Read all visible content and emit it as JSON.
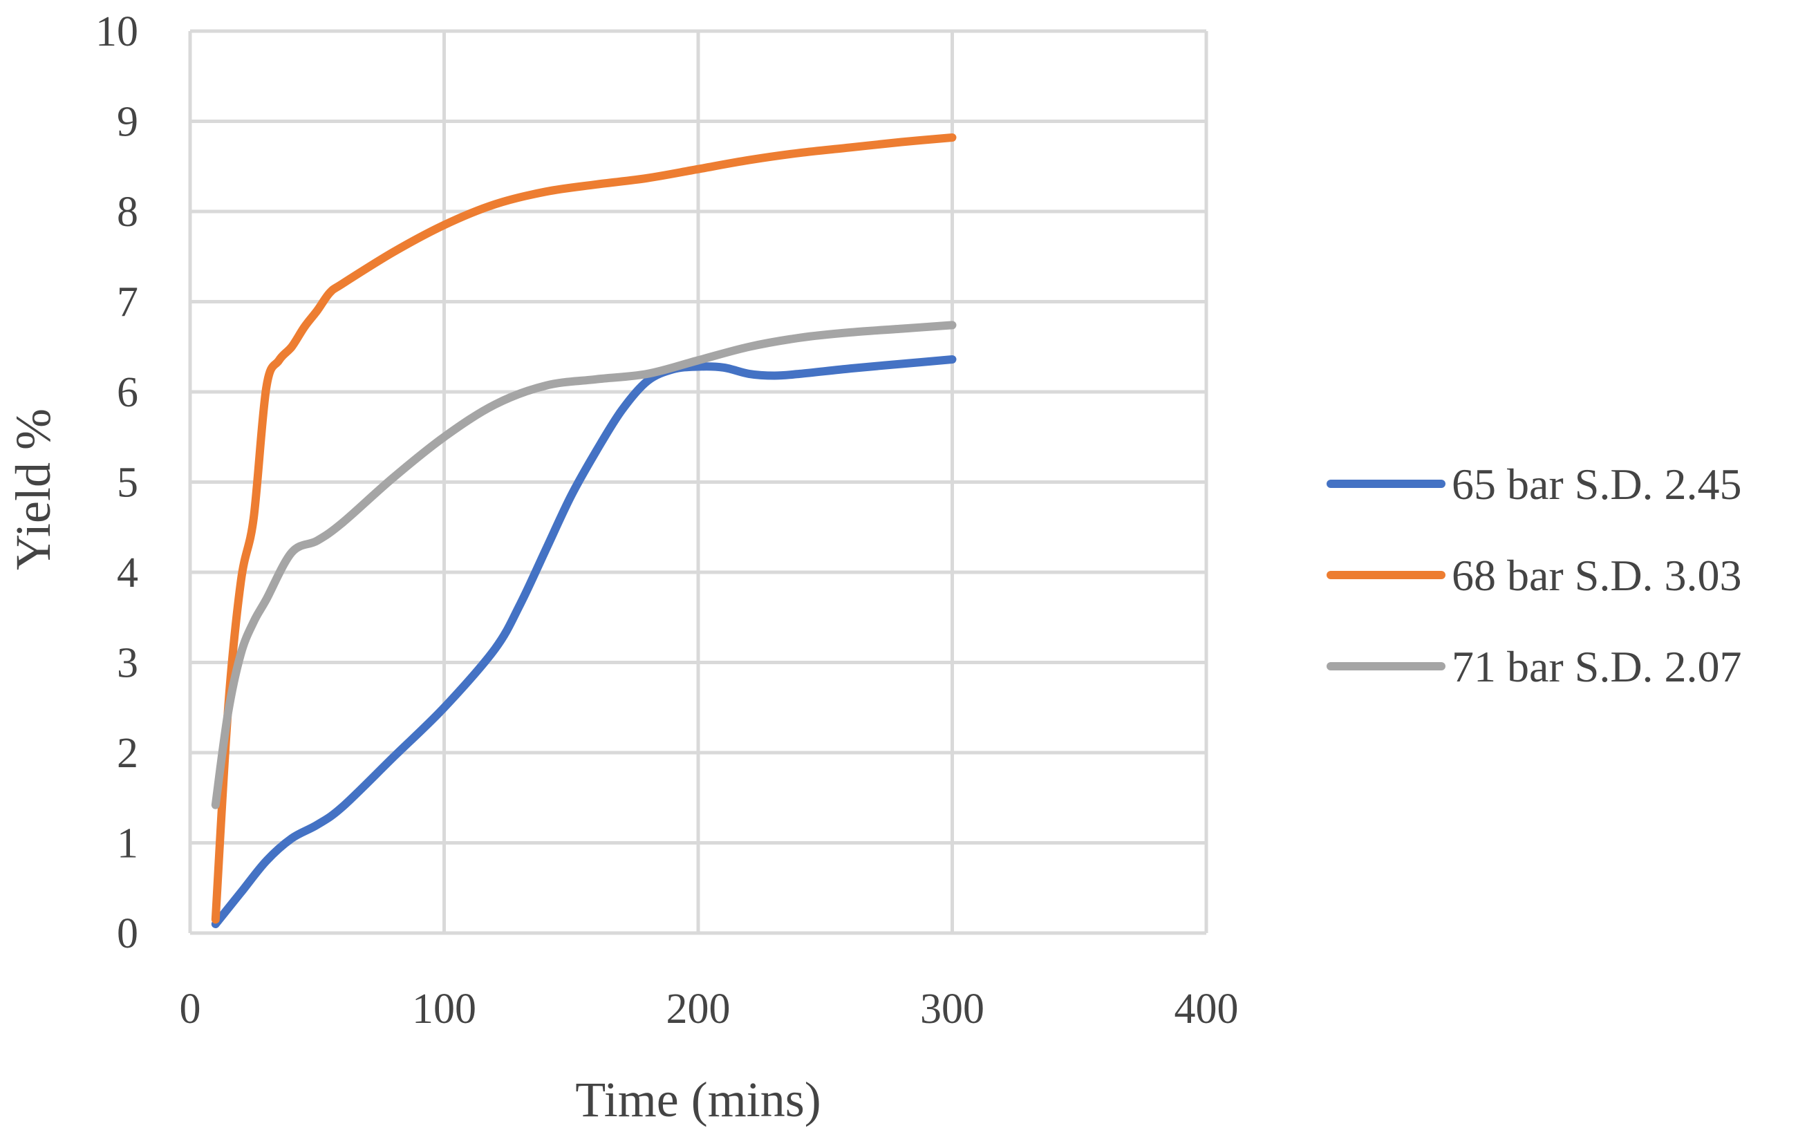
{
  "chart_data": {
    "type": "line",
    "title": "",
    "xlabel": "Time (mins)",
    "ylabel": "Yield %",
    "xlim": [
      0,
      400
    ],
    "ylim": [
      0,
      10
    ],
    "xticks": [
      0,
      100,
      200,
      300,
      400
    ],
    "yticks": [
      0,
      1,
      2,
      3,
      4,
      5,
      6,
      7,
      8,
      9,
      10
    ],
    "grid": true,
    "legend_position": "right",
    "series": [
      {
        "name": "65 bar S.D. 2.45",
        "color": "#4472C4",
        "x": [
          10,
          20,
          30,
          40,
          50,
          60,
          80,
          100,
          120,
          130,
          140,
          150,
          160,
          170,
          180,
          190,
          200,
          210,
          220,
          230,
          240,
          260,
          280,
          300
        ],
        "y": [
          0.1,
          0.45,
          0.8,
          1.05,
          1.2,
          1.4,
          1.95,
          2.5,
          3.15,
          3.65,
          4.25,
          4.85,
          5.35,
          5.8,
          6.12,
          6.25,
          6.28,
          6.27,
          6.2,
          6.18,
          6.2,
          6.26,
          6.31,
          6.36
        ]
      },
      {
        "name": "68 bar S.D. 3.03",
        "color": "#ED7D31",
        "x": [
          10,
          15,
          20,
          25,
          30,
          35,
          40,
          45,
          50,
          55,
          60,
          80,
          100,
          120,
          140,
          160,
          180,
          200,
          220,
          240,
          260,
          280,
          300
        ],
        "y": [
          0.15,
          2.5,
          3.9,
          4.6,
          6.05,
          6.35,
          6.5,
          6.72,
          6.9,
          7.1,
          7.2,
          7.55,
          7.85,
          8.08,
          8.22,
          8.3,
          8.37,
          8.47,
          8.57,
          8.65,
          8.71,
          8.77,
          8.82
        ]
      },
      {
        "name": "71 bar S.D. 2.07",
        "color": "#A5A5A5",
        "x": [
          10,
          15,
          20,
          25,
          30,
          40,
          50,
          60,
          80,
          100,
          120,
          140,
          160,
          180,
          200,
          220,
          240,
          260,
          280,
          300
        ],
        "y": [
          1.42,
          2.45,
          3.1,
          3.45,
          3.7,
          4.22,
          4.35,
          4.55,
          5.05,
          5.5,
          5.86,
          6.07,
          6.14,
          6.2,
          6.35,
          6.5,
          6.6,
          6.66,
          6.7,
          6.74
        ]
      }
    ]
  }
}
